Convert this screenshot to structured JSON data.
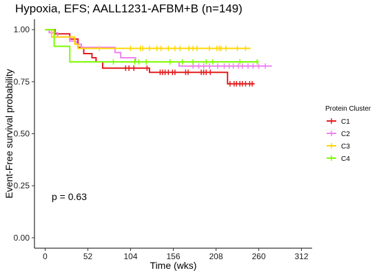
{
  "chart_data": {
    "type": "line",
    "title": "Hypoxia,  EFS; AALL1231-AFBM+B (n=149)",
    "xlabel": "Time (wks)",
    "ylabel": "Event-Free survival probability",
    "xlim": [
      -13,
      325
    ],
    "ylim": [
      -0.05,
      1.05
    ],
    "xticks": [
      0,
      52,
      104,
      156,
      208,
      260,
      312
    ],
    "yticks": [
      0.0,
      0.25,
      0.5,
      0.75,
      1.0
    ],
    "ytick_labels": [
      "0.00",
      "0.25",
      "0.50",
      "0.75",
      "1.00"
    ],
    "grid": false,
    "annotation": "p = 0.63",
    "legend": {
      "title": "Protein Cluster",
      "position": "right"
    },
    "series": [
      {
        "name": "C1",
        "color": "#e41a1c",
        "steps": [
          [
            0,
            1.0
          ],
          [
            12,
            0.98
          ],
          [
            30,
            0.955
          ],
          [
            40,
            0.915
          ],
          [
            47,
            0.885
          ],
          [
            57,
            0.865
          ],
          [
            62,
            0.845
          ],
          [
            70,
            0.815
          ],
          [
            127,
            0.795
          ],
          [
            222,
            0.74
          ],
          [
            255,
            0.74
          ]
        ],
        "censor": [
          98,
          102,
          108,
          124,
          140,
          143,
          146,
          150,
          155,
          158,
          171,
          174,
          190,
          193,
          196,
          201,
          225,
          230,
          233,
          237,
          240,
          244,
          249,
          252
        ]
      },
      {
        "name": "C2",
        "color": "#ee82ee",
        "steps": [
          [
            0,
            1.0
          ],
          [
            5,
            0.985
          ],
          [
            15,
            0.965
          ],
          [
            30,
            0.945
          ],
          [
            38,
            0.93
          ],
          [
            44,
            0.915
          ],
          [
            85,
            0.89
          ],
          [
            92,
            0.865
          ],
          [
            110,
            0.845
          ],
          [
            163,
            0.825
          ],
          [
            276,
            0.825
          ]
        ],
        "censor": [
          180,
          187,
          193,
          200,
          210,
          218,
          224,
          229,
          235,
          240,
          247,
          253,
          260,
          268
        ]
      },
      {
        "name": "C3",
        "color": "#ffd700",
        "steps": [
          [
            0,
            1.0
          ],
          [
            8,
            0.965
          ],
          [
            36,
            0.93
          ],
          [
            40,
            0.91
          ],
          [
            250,
            0.91
          ]
        ],
        "censor": [
          66,
          104,
          116,
          119,
          127,
          136,
          141,
          150,
          158,
          164,
          175,
          180,
          185,
          200,
          209,
          212,
          214,
          220,
          234,
          244
        ]
      },
      {
        "name": "C4",
        "color": "#7cfc00",
        "steps": [
          [
            0,
            1.0
          ],
          [
            11,
            0.92
          ],
          [
            30,
            0.845
          ],
          [
            260,
            0.845
          ]
        ],
        "censor": [
          83,
          109,
          114,
          123,
          152,
          167,
          180,
          196,
          204,
          237,
          258
        ]
      }
    ]
  }
}
